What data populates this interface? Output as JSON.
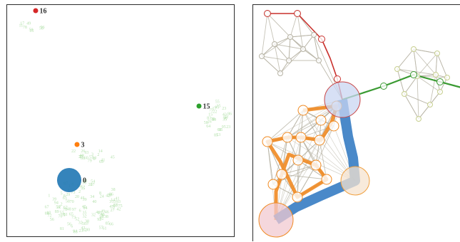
{
  "left_panel": {
    "labeled_points": [
      {
        "label": "16",
        "color": "#d62728"
      },
      {
        "label": "15",
        "color": "#2ca02c"
      },
      {
        "label": "3",
        "color": "#ff7f0e"
      },
      {
        "label": "0",
        "color": "#1f77b4"
      }
    ],
    "background_label_color": "#a9dca0"
  },
  "right_panel": {
    "path_colors": {
      "red": "#c9302c",
      "green": "#3a9a32",
      "orange": "#f08a22",
      "blue": "#3b7fc4",
      "gray": "#b7b3a4"
    },
    "highlight_nodes": [
      {
        "fill": "#c9d6f2",
        "stroke": "#c94545"
      },
      {
        "fill": "#f5e3cf",
        "stroke": "#f0a040"
      },
      {
        "fill": "#f2c9d0",
        "stroke": "#f08a22"
      }
    ]
  }
}
